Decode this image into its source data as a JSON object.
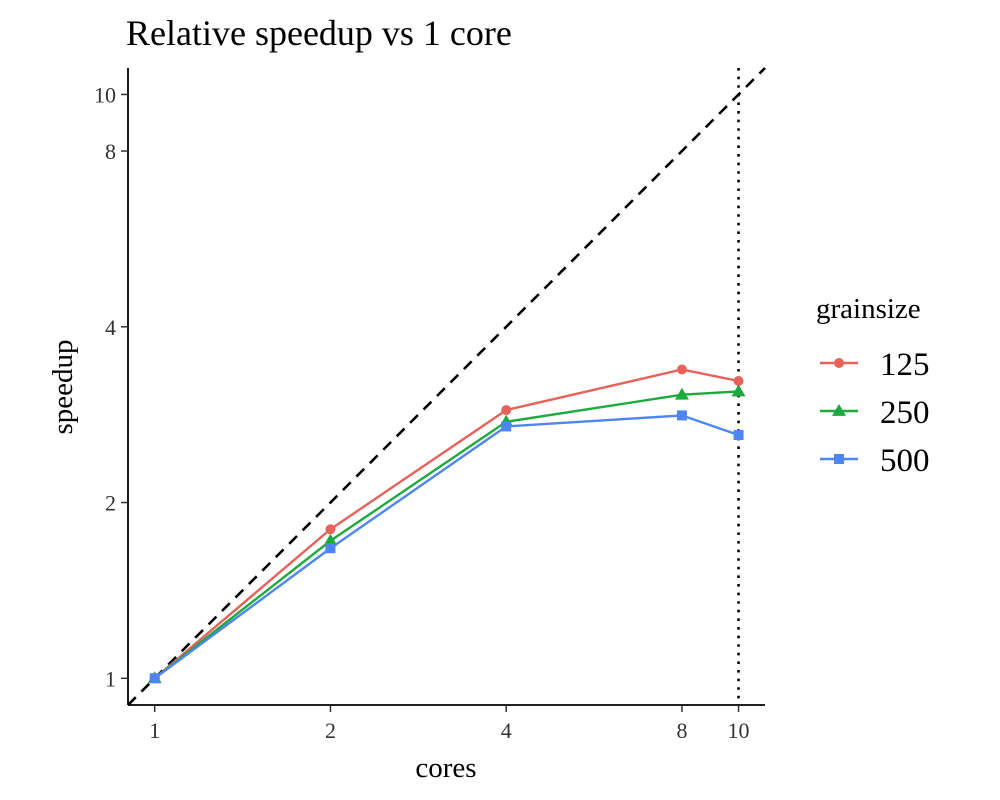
{
  "chart_data": {
    "type": "line",
    "title": "Relative speedup vs 1 core",
    "xlabel": "cores",
    "ylabel": "speedup",
    "x_scale": "log2",
    "y_scale": "log2",
    "x_ticks": [
      1,
      2,
      4,
      8,
      10
    ],
    "x_tick_labels": [
      "1",
      "2",
      "4",
      "8",
      "10"
    ],
    "y_ticks": [
      1,
      2,
      4,
      8,
      10
    ],
    "y_tick_labels": [
      "1",
      "2",
      "4",
      "8",
      "10"
    ],
    "xlim": [
      0.9,
      11.1
    ],
    "ylim": [
      0.9,
      11.1
    ],
    "grid": false,
    "x": [
      1,
      2,
      4,
      8,
      10
    ],
    "legend": {
      "title": "grainsize",
      "position": "right"
    },
    "series": [
      {
        "name": "125",
        "values": [
          1.0,
          1.8,
          2.88,
          3.38,
          3.23
        ],
        "color": "#E8625C",
        "marker": "circle"
      },
      {
        "name": "250",
        "values": [
          1.0,
          1.72,
          2.75,
          3.06,
          3.1
        ],
        "color": "#1DAA3D",
        "marker": "triangle"
      },
      {
        "name": "500",
        "values": [
          1.0,
          1.67,
          2.7,
          2.82,
          2.61
        ],
        "color": "#4D86F0",
        "marker": "square"
      }
    ],
    "reference_lines": [
      {
        "kind": "ideal",
        "style": "dashed",
        "color": "#000000",
        "x": [
          0.9,
          11.1
        ],
        "y": [
          0.9,
          11.1
        ]
      },
      {
        "kind": "vertical",
        "style": "dotted",
        "color": "#000000",
        "x": 10
      }
    ]
  }
}
